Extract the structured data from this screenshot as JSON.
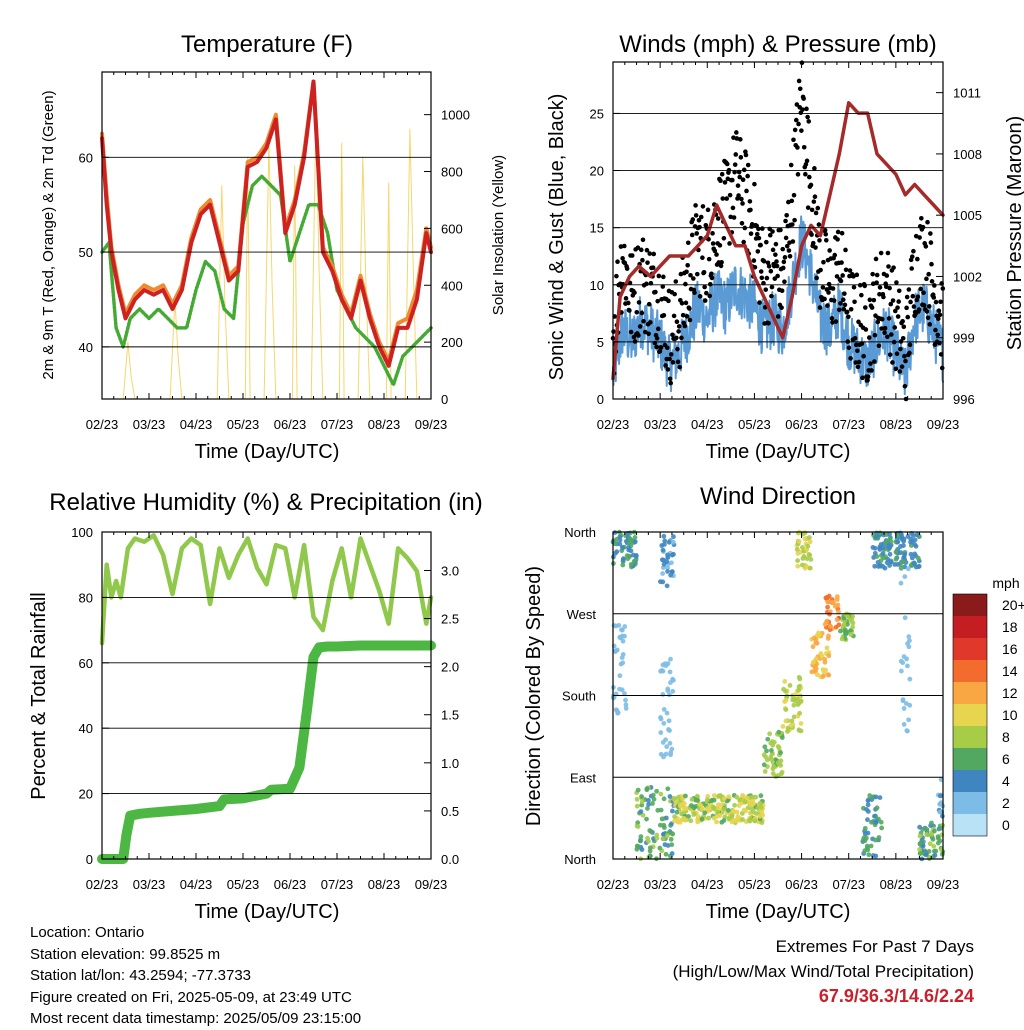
{
  "panels": {
    "temperature": {
      "title": "Temperature (F)",
      "ylabel_left": "2m & 9m T (Red, Orange) & 2m Td (Green)",
      "ylabel_right": "Solar Insolation (Yellow)",
      "xlabel": "Time (Day/UTC)"
    },
    "winds": {
      "title": "Winds (mph) & Pressure (mb)",
      "ylabel_left": "Sonic Wind & Gust (Blue, Black)",
      "ylabel_right": "Station Pressure (Maroon)",
      "xlabel": "Time (Day/UTC)"
    },
    "humidity": {
      "title": "Relative Humidity (%) & Precipitation (in)",
      "ylabel_left": "Percent & Total Rainfall",
      "xlabel": "Time (Day/UTC)"
    },
    "direction": {
      "title": "Wind Direction",
      "ylabel_left": "Direction (Colored By Speed)",
      "xlabel": "Time (Day/UTC)",
      "colorbar_title": "mph"
    }
  },
  "info": {
    "location": "Location: Ontario",
    "elevation": "Station elevation: 99.8525 m",
    "latlon": "Station lat/lon: 43.2594; -77.3733",
    "created": "Figure created on Fri, 2025-05-09, at 23:49 UTC",
    "timestamp": "Most recent data timestamp: 2025/05/09 23:15:00"
  },
  "extremes": {
    "line1": "Extremes For Past 7 Days",
    "line2": "(High/Low/Max Wind/Total Precipitation)",
    "values": "67.9/36.3/14.6/2.24"
  },
  "colors": {
    "temp_2m": "#cc2222",
    "temp_9m": "#f08a30",
    "dewpoint": "#44aa33",
    "solar": "#f5d76e",
    "wind": "#5b9bd5",
    "gust": "#000000",
    "pressure": "#a52a2a",
    "rh": "#8fc84a",
    "precip": "#4cb843"
  },
  "chart_data": [
    {
      "type": "line",
      "title": "Temperature (F)",
      "x_ticks": [
        "02/23",
        "03/23",
        "04/23",
        "05/23",
        "06/23",
        "07/23",
        "08/23",
        "09/23"
      ],
      "y_left_ticks": [
        "40",
        "50",
        "60"
      ],
      "y_left_range": [
        34.5,
        69
      ],
      "y_right_ticks": [
        "0",
        "200",
        "400",
        "600",
        "800",
        "1000"
      ],
      "y_right_range": [
        0,
        1150
      ],
      "series": [
        {
          "key": "t2m",
          "x": [
            0,
            0.1,
            0.2,
            0.35,
            0.5,
            0.7,
            0.9,
            1.1,
            1.3,
            1.5,
            1.7,
            1.9,
            2.1,
            2.3,
            2.5,
            2.7,
            2.9,
            3.1,
            3.3,
            3.5,
            3.7,
            3.9,
            4.1,
            4.3,
            4.5,
            4.7,
            4.9,
            5.1,
            5.3,
            5.5,
            5.7,
            5.9,
            6.1,
            6.3,
            6.5,
            6.7,
            6.9,
            7
          ],
          "values": [
            62,
            55,
            50,
            46,
            43,
            45,
            46,
            45.5,
            46,
            44,
            46,
            51,
            54,
            55,
            51,
            47,
            48,
            59,
            59.5,
            61,
            64,
            52,
            55,
            60,
            68,
            50,
            48,
            45,
            43,
            47,
            43,
            40,
            38,
            42,
            42,
            45,
            52,
            50
          ]
        },
        {
          "key": "t9m",
          "x": [
            0,
            0.1,
            0.2,
            0.35,
            0.5,
            0.7,
            0.9,
            1.1,
            1.3,
            1.5,
            1.7,
            1.9,
            2.1,
            2.3,
            2.5,
            2.7,
            2.9,
            3.1,
            3.3,
            3.5,
            3.7,
            3.9,
            4.1,
            4.3,
            4.5,
            4.7,
            4.9,
            5.1,
            5.3,
            5.5,
            5.7,
            5.9,
            6.1,
            6.3,
            6.5,
            6.7,
            6.9,
            7
          ],
          "values": [
            62.5,
            56,
            50.5,
            46.5,
            43.5,
            45.5,
            46.5,
            46,
            46.5,
            44.5,
            46.5,
            51.5,
            54.5,
            55.5,
            51.5,
            47.5,
            48.5,
            59.5,
            60,
            61.5,
            64.5,
            52.5,
            55.5,
            60.5,
            68,
            50.5,
            48.5,
            45.5,
            43.5,
            47.5,
            43.5,
            40.5,
            38.5,
            42.5,
            43,
            46,
            52.5,
            50.5
          ]
        },
        {
          "key": "td",
          "x": [
            0,
            0.15,
            0.3,
            0.45,
            0.6,
            0.8,
            1.0,
            1.2,
            1.4,
            1.6,
            1.8,
            2.0,
            2.2,
            2.4,
            2.6,
            2.8,
            3.0,
            3.2,
            3.4,
            3.6,
            3.8,
            4.0,
            4.2,
            4.4,
            4.6,
            4.8,
            5.0,
            5.2,
            5.4,
            5.6,
            5.8,
            6.0,
            6.2,
            6.4,
            6.6,
            6.8,
            7
          ],
          "values": [
            50,
            51,
            42,
            40,
            43,
            44,
            43,
            44,
            43,
            42,
            42,
            46,
            49,
            48,
            44,
            43,
            53,
            57,
            58,
            57,
            56,
            49,
            52,
            55,
            55,
            52,
            46,
            44,
            42,
            41,
            40,
            38,
            36,
            39,
            40,
            41,
            42
          ]
        },
        {
          "key": "solar",
          "x": [
            0,
            0.45,
            0.55,
            0.62,
            0.7,
            1.45,
            1.55,
            1.62,
            1.7,
            2.45,
            2.55,
            2.62,
            2.7,
            3.05,
            3.1,
            3.15,
            3.45,
            3.55,
            3.62,
            3.7,
            4.05,
            4.1,
            4.15,
            4.45,
            4.55,
            4.62,
            4.7,
            5.05,
            5.1,
            5.15,
            5.45,
            5.55,
            5.62,
            5.7,
            6.05,
            6.1,
            6.15,
            6.45,
            6.55,
            6.62,
            6.7,
            7
          ],
          "values": [
            0,
            0,
            200,
            80,
            0,
            0,
            350,
            150,
            0,
            0,
            750,
            320,
            0,
            0,
            850,
            0,
            0,
            900,
            400,
            0,
            0,
            820,
            0,
            0,
            1000,
            450,
            0,
            0,
            900,
            0,
            0,
            850,
            380,
            0,
            0,
            760,
            0,
            0,
            950,
            480,
            0,
            0
          ]
        }
      ]
    },
    {
      "type": "line",
      "title": "Winds (mph) & Pressure (mb)",
      "x_ticks": [
        "02/23",
        "03/23",
        "04/23",
        "05/23",
        "06/23",
        "07/23",
        "08/23",
        "09/23"
      ],
      "y_left_ticks": [
        "0",
        "5",
        "10",
        "15",
        "20",
        "25"
      ],
      "y_left_range": [
        0,
        29.5
      ],
      "y_right_ticks": [
        "996",
        "999",
        "1002",
        "1005",
        "1008",
        "1011"
      ],
      "y_right_range": [
        996,
        1012.5
      ],
      "series": [
        {
          "key": "wind",
          "x": [
            0,
            0.2,
            0.4,
            0.6,
            0.8,
            1.0,
            1.2,
            1.4,
            1.6,
            1.8,
            2.0,
            2.2,
            2.4,
            2.6,
            2.8,
            3.0,
            3.2,
            3.4,
            3.6,
            3.8,
            4.0,
            4.2,
            4.4,
            4.6,
            4.8,
            5.0,
            5.2,
            5.4,
            5.6,
            5.8,
            6.0,
            6.2,
            6.4,
            6.6,
            6.8,
            7
          ],
          "values": [
            2,
            6,
            5,
            7,
            6,
            5,
            3,
            4,
            6,
            8,
            7,
            9,
            8,
            10,
            9,
            8,
            6,
            7,
            6,
            10,
            14,
            11,
            7,
            6,
            8,
            5,
            4,
            3,
            5,
            6,
            4,
            2,
            7,
            8,
            6,
            4
          ]
        },
        {
          "key": "gust",
          "x": [
            0,
            0.2,
            0.4,
            0.6,
            0.8,
            1.0,
            1.2,
            1.4,
            1.6,
            1.8,
            2.0,
            2.2,
            2.4,
            2.6,
            2.8,
            3.0,
            3.2,
            3.4,
            3.6,
            3.8,
            4.0,
            4.2,
            4.4,
            4.6,
            4.8,
            5.0,
            5.2,
            5.4,
            5.6,
            5.8,
            6.0,
            6.2,
            6.4,
            6.6,
            6.8,
            7
          ],
          "values": [
            6,
            13,
            9,
            11,
            10,
            9,
            6,
            7,
            11,
            14,
            13,
            16,
            17,
            20,
            18,
            15,
            11,
            12,
            11,
            18,
            27,
            19,
            12,
            10,
            12,
            8,
            7,
            6,
            9,
            10,
            7,
            4,
            12,
            13,
            10,
            7
          ]
        },
        {
          "key": "pressure",
          "x": [
            0,
            0.15,
            0.35,
            0.55,
            0.8,
            1.0,
            1.2,
            1.4,
            1.6,
            1.8,
            2.0,
            2.2,
            2.4,
            2.6,
            2.8,
            3.0,
            3.2,
            3.4,
            3.6,
            3.8,
            4.0,
            4.2,
            4.4,
            4.6,
            4.8,
            5.0,
            5.2,
            5.4,
            5.6,
            5.8,
            6.0,
            6.2,
            6.4,
            6.6,
            6.8,
            7
          ],
          "values": [
            997,
            1001,
            1002,
            1002.5,
            1002,
            1002.5,
            1003,
            1003,
            1003,
            1003.5,
            1004,
            1005.5,
            1004.5,
            1003.5,
            1003.5,
            1002,
            1001,
            1000,
            999,
            1001,
            1003.5,
            1004.5,
            1004,
            1006,
            1008,
            1010.5,
            1010,
            1010,
            1008,
            1007.5,
            1007,
            1006,
            1006.5,
            1006,
            1005.5,
            1005
          ]
        }
      ]
    },
    {
      "type": "line",
      "title": "Relative Humidity (%) & Precipitation (in)",
      "x_ticks": [
        "02/23",
        "03/23",
        "04/23",
        "05/23",
        "06/23",
        "07/23",
        "08/23",
        "09/23"
      ],
      "y_left_ticks": [
        "0",
        "20",
        "40",
        "60",
        "80",
        "100"
      ],
      "y_left_range": [
        0,
        100
      ],
      "y_right_ticks": [
        "0.0",
        "0.5",
        "1.0",
        "1.5",
        "2.0",
        "2.5",
        "3.0"
      ],
      "y_right_range": [
        0,
        3.4
      ],
      "series": [
        {
          "key": "rh",
          "x": [
            0,
            0.1,
            0.2,
            0.3,
            0.4,
            0.55,
            0.7,
            0.9,
            1.1,
            1.3,
            1.5,
            1.7,
            1.9,
            2.1,
            2.3,
            2.5,
            2.7,
            2.9,
            3.1,
            3.3,
            3.5,
            3.7,
            3.9,
            4.1,
            4.3,
            4.5,
            4.7,
            4.9,
            5.1,
            5.3,
            5.5,
            5.7,
            5.9,
            6.1,
            6.3,
            6.5,
            6.7,
            6.9,
            7
          ],
          "values": [
            66,
            90,
            80,
            85,
            80,
            95,
            98,
            97,
            99,
            93,
            81,
            95,
            98,
            96,
            78,
            95,
            86,
            93,
            98,
            89,
            84,
            96,
            95,
            80,
            96,
            74,
            70,
            85,
            95,
            80,
            98,
            90,
            82,
            72,
            95,
            92,
            88,
            72,
            80
          ]
        },
        {
          "key": "precip",
          "x": [
            0,
            0.3,
            0.45,
            0.52,
            0.6,
            0.8,
            1.0,
            1.5,
            2.0,
            2.5,
            2.6,
            3.0,
            3.5,
            3.6,
            4.0,
            4.2,
            4.35,
            4.5,
            4.62,
            4.8,
            5.0,
            5.5,
            6.0,
            6.5,
            7
          ],
          "values": [
            0,
            0,
            0,
            0.25,
            0.45,
            0.47,
            0.48,
            0.5,
            0.52,
            0.55,
            0.62,
            0.63,
            0.68,
            0.72,
            0.73,
            0.95,
            1.5,
            2.1,
            2.2,
            2.21,
            2.21,
            2.22,
            2.22,
            2.22,
            2.22
          ]
        }
      ]
    },
    {
      "type": "scatter",
      "title": "Wind Direction",
      "x_ticks": [
        "02/23",
        "03/23",
        "04/23",
        "05/23",
        "06/23",
        "07/23",
        "08/23",
        "09/23"
      ],
      "y_ticks": [
        "North",
        "East",
        "South",
        "West",
        "North"
      ],
      "y_range": [
        0,
        360
      ],
      "colorbar_ticks": [
        "20+",
        "18",
        "16",
        "14",
        "12",
        "10",
        "8",
        "6",
        "4",
        "2",
        "0"
      ],
      "colorbar_colors": [
        "#8b1a1a",
        "#c41e22",
        "#e0382a",
        "#f36c2e",
        "#f9a742",
        "#e7d44f",
        "#a6cc48",
        "#52a860",
        "#3f86c0",
        "#7dbce6",
        "#b9e2f7"
      ],
      "clusters": [
        {
          "x": [
            0,
            0.5
          ],
          "dir": [
            320,
            360
          ],
          "speed": [
            3,
            7
          ]
        },
        {
          "x": [
            0.5,
            1.3
          ],
          "dir": [
            0,
            80
          ],
          "speed": [
            4,
            8
          ]
        },
        {
          "x": [
            1.0,
            1.3
          ],
          "dir": [
            300,
            360
          ],
          "speed": [
            2,
            5
          ]
        },
        {
          "x": [
            1.3,
            3.2
          ],
          "dir": [
            40,
            70
          ],
          "speed": [
            6,
            11
          ]
        },
        {
          "x": [
            3.2,
            3.6
          ],
          "dir": [
            90,
            140
          ],
          "speed": [
            6,
            9
          ]
        },
        {
          "x": [
            3.6,
            4.0
          ],
          "dir": [
            140,
            200
          ],
          "speed": [
            7,
            10
          ]
        },
        {
          "x": [
            3.9,
            4.2
          ],
          "dir": [
            320,
            360
          ],
          "speed": [
            7,
            11
          ]
        },
        {
          "x": [
            4.2,
            4.6
          ],
          "dir": [
            200,
            250
          ],
          "speed": [
            9,
            13
          ]
        },
        {
          "x": [
            4.5,
            4.8
          ],
          "dir": [
            250,
            290
          ],
          "speed": [
            11,
            16
          ]
        },
        {
          "x": [
            4.8,
            5.1
          ],
          "dir": [
            240,
            270
          ],
          "speed": [
            6,
            9
          ]
        },
        {
          "x": [
            5.3,
            5.7
          ],
          "dir": [
            0,
            70
          ],
          "speed": [
            3,
            7
          ]
        },
        {
          "x": [
            5.5,
            6.5
          ],
          "dir": [
            320,
            360
          ],
          "speed": [
            3,
            6
          ]
        },
        {
          "x": [
            6.5,
            7
          ],
          "dir": [
            0,
            40
          ],
          "speed": [
            4,
            8
          ]
        },
        {
          "x": [
            0,
            0.3
          ],
          "dir": [
            160,
            260
          ],
          "speed": [
            1,
            3
          ]
        },
        {
          "x": [
            1.0,
            1.3
          ],
          "dir": [
            100,
            220
          ],
          "speed": [
            1,
            3
          ]
        },
        {
          "x": [
            6.1,
            6.3
          ],
          "dir": [
            140,
            320
          ],
          "speed": [
            1,
            3
          ]
        },
        {
          "x": [
            6.9,
            7.0
          ],
          "dir": [
            40,
            100
          ],
          "speed": [
            2,
            4
          ]
        }
      ]
    }
  ]
}
